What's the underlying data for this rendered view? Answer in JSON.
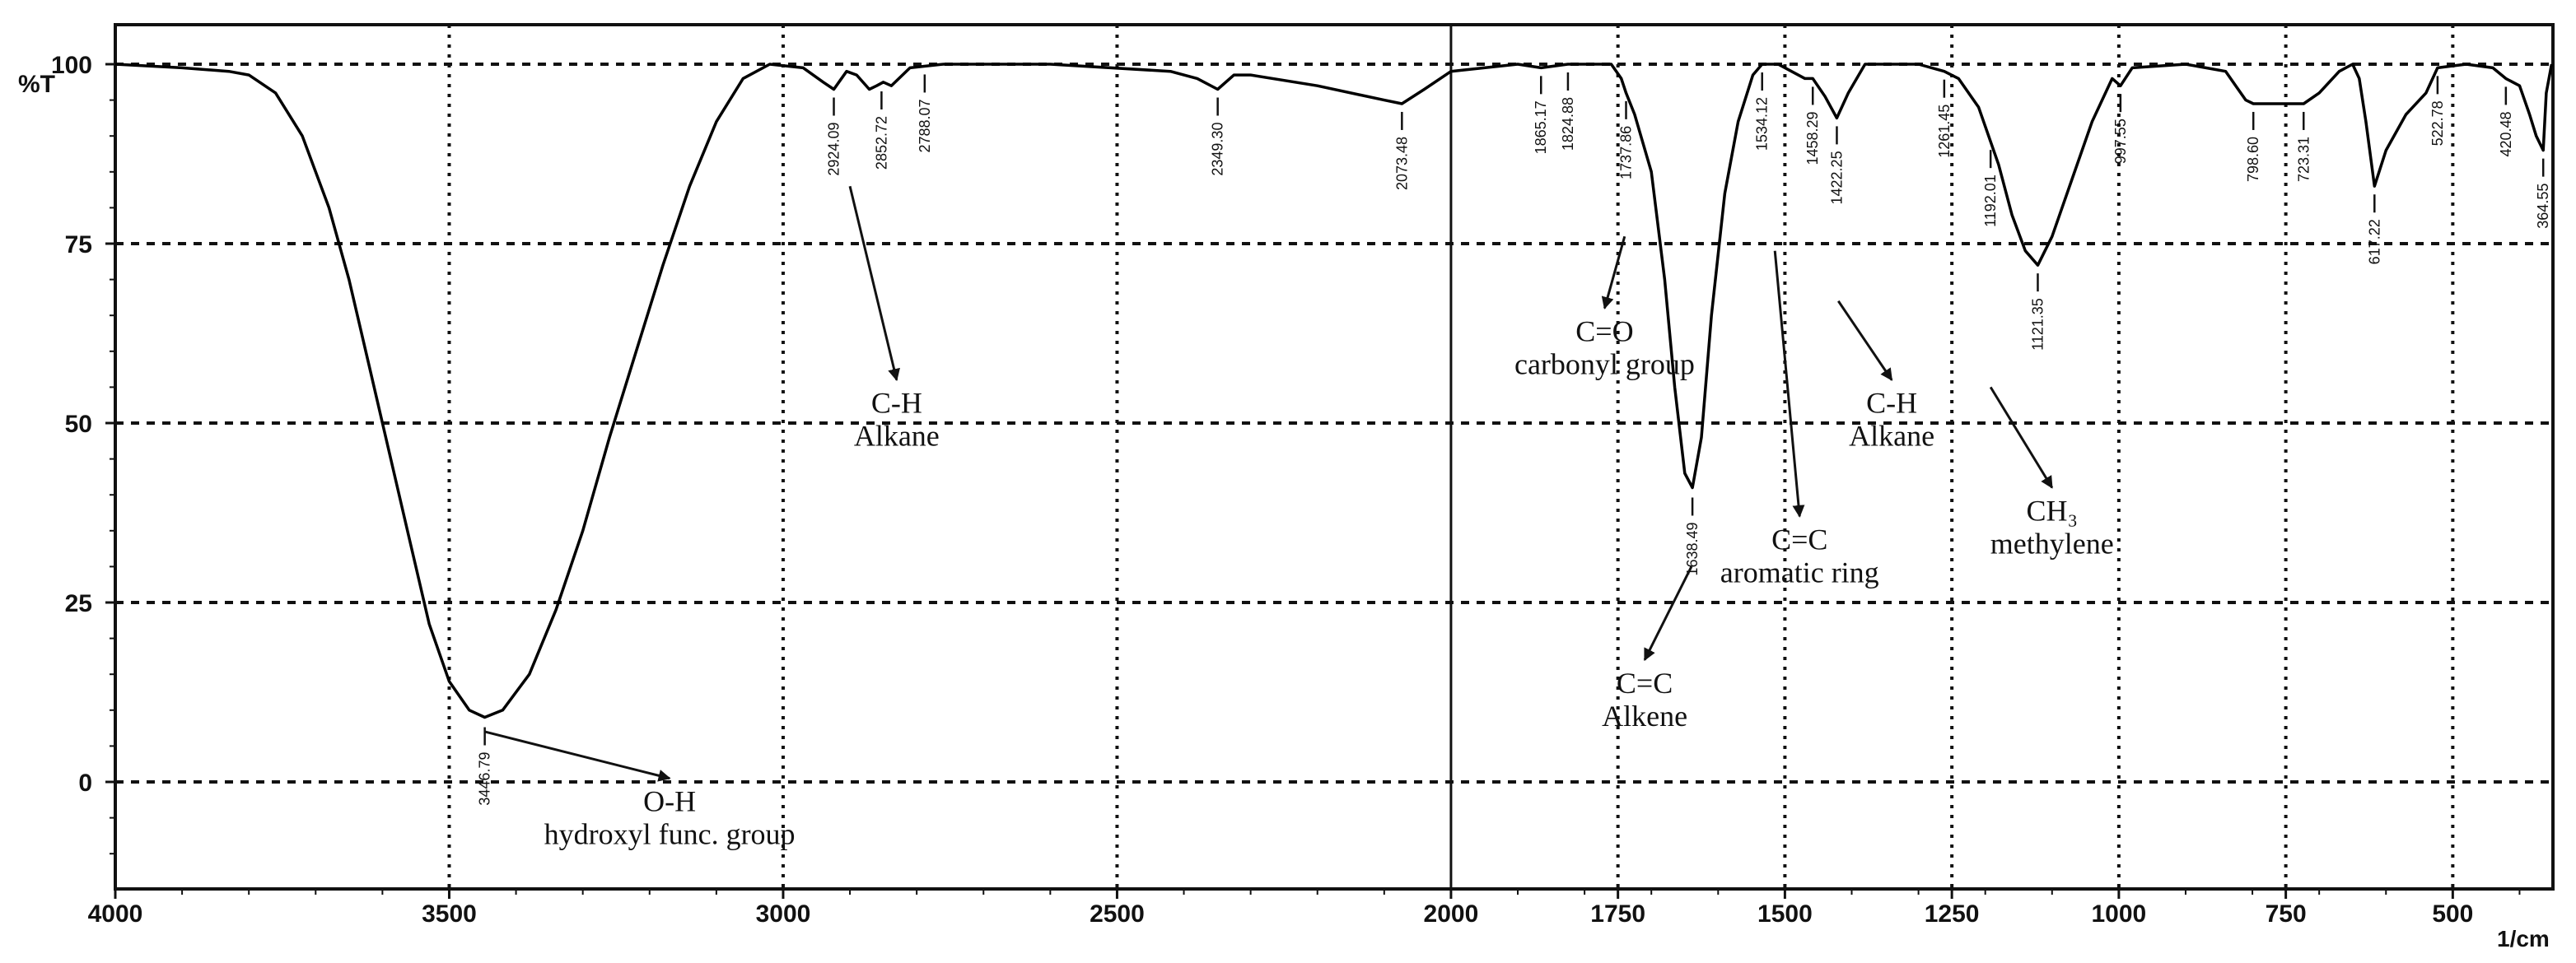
{
  "chart_data": {
    "type": "line",
    "title": "",
    "ylabel": "%T",
    "xlabel": "1/cm",
    "xlim": [
      4000,
      350
    ],
    "ylim": [
      -15,
      100
    ],
    "x_ticks": [
      "4000",
      "3500",
      "3000",
      "2500",
      "2000",
      "1750",
      "1500",
      "1250",
      "1000",
      "750",
      "500"
    ],
    "y_ticks": [
      "100",
      "75",
      "50",
      "25",
      "0"
    ],
    "grid": true,
    "line_color": "#000000",
    "series": [
      {
        "points": [
          [
            4000,
            100
          ],
          [
            3900,
            99.5
          ],
          [
            3830,
            99
          ],
          [
            3800,
            98.5
          ],
          [
            3760,
            96
          ],
          [
            3720,
            90
          ],
          [
            3680,
            80
          ],
          [
            3650,
            70
          ],
          [
            3620,
            58
          ],
          [
            3590,
            46
          ],
          [
            3560,
            34
          ],
          [
            3530,
            22
          ],
          [
            3500,
            14
          ],
          [
            3470,
            10
          ],
          [
            3446.79,
            9
          ],
          [
            3420,
            10
          ],
          [
            3380,
            15
          ],
          [
            3340,
            24
          ],
          [
            3300,
            35
          ],
          [
            3260,
            48
          ],
          [
            3220,
            60
          ],
          [
            3180,
            72
          ],
          [
            3140,
            83
          ],
          [
            3100,
            92
          ],
          [
            3060,
            98
          ],
          [
            3020,
            100
          ],
          [
            2970,
            99.5
          ],
          [
            2940,
            97.5
          ],
          [
            2924.09,
            96.5
          ],
          [
            2905,
            99
          ],
          [
            2890,
            98.5
          ],
          [
            2871,
            96.5
          ],
          [
            2860,
            97
          ],
          [
            2850,
            97.5
          ],
          [
            2838,
            97
          ],
          [
            2810,
            99.5
          ],
          [
            2760,
            100
          ],
          [
            2600,
            100
          ],
          [
            2420,
            99
          ],
          [
            2380,
            98
          ],
          [
            2349.3,
            96.5
          ],
          [
            2325,
            98.5
          ],
          [
            2300,
            98.5
          ],
          [
            2200,
            97
          ],
          [
            2100,
            95
          ],
          [
            2073.48,
            94.5
          ],
          [
            2040,
            96.5
          ],
          [
            2000,
            99
          ],
          [
            1900,
            100
          ],
          [
            1865,
            99.5
          ],
          [
            1825,
            100
          ],
          [
            1760,
            100
          ],
          [
            1745,
            98
          ],
          [
            1737.86,
            96
          ],
          [
            1725,
            93
          ],
          [
            1700,
            85
          ],
          [
            1680,
            70
          ],
          [
            1665,
            55
          ],
          [
            1650,
            43
          ],
          [
            1638.49,
            41
          ],
          [
            1625,
            48
          ],
          [
            1610,
            65
          ],
          [
            1590,
            82
          ],
          [
            1570,
            92
          ],
          [
            1548,
            98.5
          ],
          [
            1534.12,
            100
          ],
          [
            1510,
            100
          ],
          [
            1470,
            98
          ],
          [
            1458.29,
            98
          ],
          [
            1440,
            95.5
          ],
          [
            1422.25,
            92.5
          ],
          [
            1405,
            96
          ],
          [
            1380,
            100
          ],
          [
            1300,
            100
          ],
          [
            1261.45,
            99
          ],
          [
            1240,
            98
          ],
          [
            1210,
            94
          ],
          [
            1180,
            86
          ],
          [
            1160,
            79
          ],
          [
            1140,
            74
          ],
          [
            1121.35,
            72
          ],
          [
            1100,
            76
          ],
          [
            1070,
            84
          ],
          [
            1040,
            92
          ],
          [
            1010,
            98
          ],
          [
            997.55,
            97
          ],
          [
            980,
            99.5
          ],
          [
            900,
            100
          ],
          [
            840,
            99
          ],
          [
            825,
            97
          ],
          [
            810,
            95
          ],
          [
            798.6,
            94.5
          ],
          [
            775,
            94.5
          ],
          [
            740,
            94.5
          ],
          [
            723.31,
            94.5
          ],
          [
            700,
            96
          ],
          [
            670,
            99
          ],
          [
            650,
            100
          ],
          [
            640,
            98
          ],
          [
            630,
            92
          ],
          [
            620,
            85
          ],
          [
            617.22,
            83
          ],
          [
            600,
            88
          ],
          [
            570,
            93
          ],
          [
            540,
            96
          ],
          [
            522.78,
            99.5
          ],
          [
            480,
            100
          ],
          [
            440,
            99.5
          ],
          [
            420.48,
            98
          ],
          [
            400,
            97
          ],
          [
            385,
            93
          ],
          [
            375,
            90
          ],
          [
            364.55,
            88
          ],
          [
            360,
            96
          ],
          [
            352,
            100
          ]
        ]
      }
    ],
    "peak_labels": [
      {
        "x": 3446.79,
        "text": "3446.79"
      },
      {
        "x": 2924.09,
        "text": "2924.09"
      },
      {
        "x": 2852.72,
        "text": "2852.72"
      },
      {
        "x": 2788.07,
        "text": "2788.07"
      },
      {
        "x": 2349.3,
        "text": "2349.30"
      },
      {
        "x": 2073.48,
        "text": "2073.48"
      },
      {
        "x": 1865.17,
        "text": "1865.17"
      },
      {
        "x": 1824.88,
        "text": "1824.88"
      },
      {
        "x": 1737.86,
        "text": "1737.86"
      },
      {
        "x": 1638.49,
        "text": "1638.49"
      },
      {
        "x": 1534.12,
        "text": "1534.12"
      },
      {
        "x": 1458.29,
        "text": "1458.29"
      },
      {
        "x": 1422.25,
        "text": "1422.25"
      },
      {
        "x": 1261.45,
        "text": "1261.45"
      },
      {
        "x": 1192.01,
        "text": "1192.01"
      },
      {
        "x": 1121.35,
        "text": "1121.35"
      },
      {
        "x": 997.55,
        "text": "997.55"
      },
      {
        "x": 798.6,
        "text": "798.60"
      },
      {
        "x": 723.31,
        "text": "723.31"
      },
      {
        "x": 617.22,
        "text": "617.22"
      },
      {
        "x": 522.78,
        "text": "522.78"
      },
      {
        "x": 420.48,
        "text": "420.48"
      },
      {
        "x": 364.55,
        "text": "364.55"
      }
    ],
    "annotations": [
      {
        "lines": [
          "O-H",
          "hydroxyl func. group"
        ],
        "from": [
          3446.79,
          7
        ],
        "to": [
          3170,
          0.5
        ]
      },
      {
        "lines": [
          "C-H",
          "Alkane"
        ],
        "from": [
          2900,
          83
        ],
        "to": [
          2830,
          56
        ]
      },
      {
        "lines": [
          "C=O",
          "carbonyl group"
        ],
        "from": [
          1740,
          76
        ],
        "to": [
          1770,
          66
        ]
      },
      {
        "lines": [
          "C=C",
          "Alkene"
        ],
        "from": [
          1640,
          30
        ],
        "to": [
          1710,
          17
        ]
      },
      {
        "lines": [
          "C=C",
          "aromatic ring"
        ],
        "from": [
          1515,
          74
        ],
        "to": [
          1478,
          37
        ]
      },
      {
        "lines": [
          "C-H",
          "Alkane"
        ],
        "from": [
          1420,
          67
        ],
        "to": [
          1340,
          56
        ]
      },
      {
        "lines": [
          "CH₃",
          "methylene"
        ],
        "from": [
          1192.01,
          55
        ],
        "to": [
          1100,
          41
        ]
      }
    ]
  }
}
